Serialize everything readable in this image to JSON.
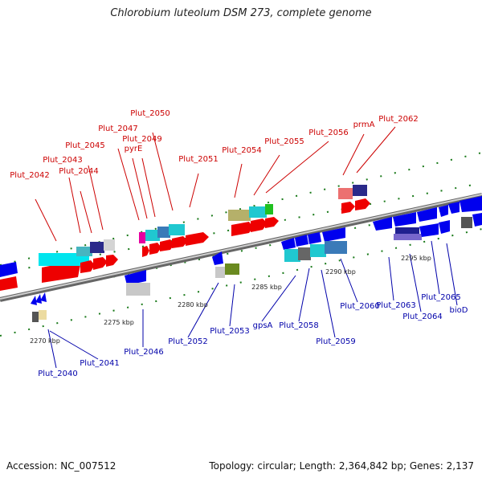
{
  "title": "Chlorobium luteolum DSM 273, complete genome",
  "footer": {
    "accession": "Accession: NC_007512",
    "topology": "Topology: circular; Length: 2,364,842 bp; Genes: 2,137"
  },
  "scale": {
    "ticks": [
      "2270 kbp",
      "2275 kbp",
      "2280 kbp",
      "2285 kbp",
      "2290 kbp",
      "2295 kbp"
    ]
  },
  "colors": {
    "forward_label": "#cc0000",
    "reverse_label": "#0000aa",
    "forward_cds": "#ee0000",
    "reverse_cds": "#0000ee",
    "backbone": "#888888",
    "tick": "#1a7a1a"
  },
  "labels": {
    "forward": [
      "Plut_2042",
      "Plut_2043",
      "Plut_2044",
      "Plut_2045",
      "Plut_2047",
      "Plut_2049",
      "pyrE",
      "Plut_2050",
      "Plut_2051",
      "Plut_2054",
      "Plut_2055",
      "Plut_2056",
      "prmA",
      "Plut_2062"
    ],
    "reverse": [
      "Plut_2040",
      "Plut_2041",
      "Plut_2046",
      "Plut_2052",
      "Plut_2053",
      "gpsA",
      "Plut_2058",
      "Plut_2059",
      "Plut_2060",
      "Plut_2063",
      "Plut_2064",
      "Plut_2065",
      "bioD"
    ]
  }
}
